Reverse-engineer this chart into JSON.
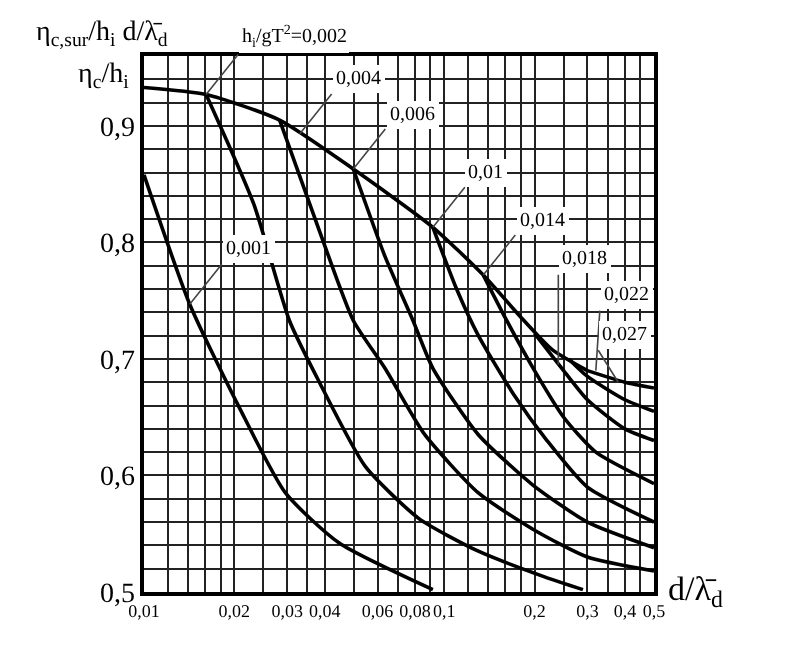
{
  "chart_data": {
    "type": "line",
    "ylabel": "η$_{c,sur}$/h$_{i}$ d/λ̄$_{d}$",
    "xlabel": "d/λ̄$_{d}$",
    "log": "x",
    "grid": true,
    "marker": "none",
    "line_style": "solid",
    "xlim": [
      0.01,
      0.5
    ],
    "ylim": [
      0.5,
      0.96
    ],
    "xticks": [
      {
        "value": 0.01,
        "label": "0,01"
      },
      {
        "value": 0.012,
        "label": null
      },
      {
        "value": 0.014,
        "label": null
      },
      {
        "value": 0.016,
        "label": null
      },
      {
        "value": 0.018,
        "label": null
      },
      {
        "value": 0.02,
        "label": "0,02"
      },
      {
        "value": 0.025,
        "label": null
      },
      {
        "value": 0.03,
        "label": "0,03"
      },
      {
        "value": 0.035,
        "label": null
      },
      {
        "value": 0.04,
        "label": "0,04"
      },
      {
        "value": 0.05,
        "label": null
      },
      {
        "value": 0.06,
        "label": "0,06"
      },
      {
        "value": 0.07,
        "label": null
      },
      {
        "value": 0.08,
        "label": "0,08"
      },
      {
        "value": 0.09,
        "label": null
      },
      {
        "value": 0.1,
        "label": "0,1"
      },
      {
        "value": 0.12,
        "label": null
      },
      {
        "value": 0.14,
        "label": null
      },
      {
        "value": 0.16,
        "label": null
      },
      {
        "value": 0.18,
        "label": null
      },
      {
        "value": 0.2,
        "label": "0,2"
      },
      {
        "value": 0.25,
        "label": null
      },
      {
        "value": 0.3,
        "label": "0,3"
      },
      {
        "value": 0.35,
        "label": null
      },
      {
        "value": 0.4,
        "label": "0,4"
      },
      {
        "value": 0.45,
        "label": null
      },
      {
        "value": 0.5,
        "label": "0,5"
      }
    ],
    "yticks": [
      {
        "value": 0.5,
        "label": "0,5"
      },
      {
        "value": 0.52,
        "label": null
      },
      {
        "value": 0.54,
        "label": null
      },
      {
        "value": 0.56,
        "label": null
      },
      {
        "value": 0.58,
        "label": null
      },
      {
        "value": 0.6,
        "label": "0,6"
      },
      {
        "value": 0.62,
        "label": null
      },
      {
        "value": 0.64,
        "label": null
      },
      {
        "value": 0.66,
        "label": null
      },
      {
        "value": 0.68,
        "label": null
      },
      {
        "value": 0.7,
        "label": "0,7"
      },
      {
        "value": 0.72,
        "label": null
      },
      {
        "value": 0.74,
        "label": null
      },
      {
        "value": 0.76,
        "label": null
      },
      {
        "value": 0.78,
        "label": null
      },
      {
        "value": 0.8,
        "label": "0,8"
      },
      {
        "value": 0.82,
        "label": null
      },
      {
        "value": 0.84,
        "label": null
      },
      {
        "value": 0.86,
        "label": null
      },
      {
        "value": 0.88,
        "label": null
      },
      {
        "value": 0.9,
        "label": "0,9"
      },
      {
        "value": 0.92,
        "label": null
      },
      {
        "value": 0.94,
        "label": null
      }
    ],
    "series": [
      {
        "color": "#000000",
        "x": [
          0.01,
          0.0161,
          0.0283,
          0.0498,
          0.0917,
          0.135,
          0.177,
          0.229,
          0.3
        ],
        "values": [
          0.933,
          0.927,
          0.905,
          0.863,
          0.813,
          0.772,
          0.738,
          0.708,
          0.69
        ]
      },
      {
        "color": "#000000",
        "x": [
          0.01,
          0.0142,
          0.0208,
          0.0296,
          0.0447,
          0.0917
        ],
        "values": [
          0.858,
          0.747,
          0.658,
          0.585,
          0.542,
          0.502
        ]
      },
      {
        "color": "#000000",
        "x": [
          0.0161,
          0.0232,
          0.0305,
          0.0384,
          0.0545,
          0.0824,
          0.13,
          0.216,
          0.29
        ],
        "values": [
          0.927,
          0.833,
          0.733,
          0.68,
          0.608,
          0.563,
          0.535,
          0.513,
          0.502
        ]
      },
      {
        "color": "#000000",
        "x": [
          0.0283,
          0.0384,
          0.0498,
          0.0635,
          0.0862,
          0.13,
          0.2,
          0.3,
          0.5
        ],
        "values": [
          0.905,
          0.81,
          0.733,
          0.692,
          0.635,
          0.585,
          0.553,
          0.53,
          0.518
        ]
      },
      {
        "color": "#000000",
        "x": [
          0.0498,
          0.0635,
          0.0787,
          0.0917,
          0.13,
          0.197,
          0.3,
          0.5
        ],
        "values": [
          0.863,
          0.788,
          0.733,
          0.692,
          0.635,
          0.592,
          0.56,
          0.538
        ]
      },
      {
        "color": "#000000",
        "x": [
          0.0917,
          0.11,
          0.13,
          0.17,
          0.22,
          0.3,
          0.5
        ],
        "values": [
          0.813,
          0.76,
          0.72,
          0.67,
          0.63,
          0.59,
          0.56
        ]
      },
      {
        "color": "#000000",
        "x": [
          0.135,
          0.16,
          0.2,
          0.25,
          0.32,
          0.5
        ],
        "values": [
          0.772,
          0.735,
          0.69,
          0.65,
          0.62,
          0.593
        ]
      },
      {
        "color": "#000000",
        "x": [
          0.2,
          0.25,
          0.3,
          0.4,
          0.5
        ],
        "values": [
          0.722,
          0.69,
          0.665,
          0.64,
          0.63
        ]
      },
      {
        "color": "#000000",
        "x": [
          0.26,
          0.3,
          0.4,
          0.5
        ],
        "values": [
          0.7,
          0.685,
          0.665,
          0.655
        ]
      },
      {
        "color": "#000000",
        "x": [
          0.3,
          0.4,
          0.5
        ],
        "values": [
          0.69,
          0.68,
          0.675
        ]
      }
    ],
    "annotations": [
      "η$_{c}$/h$_{i}$",
      {
        "text": "h$_{i}$/gT$^{2}$=0,002",
        "x": 0.0161,
        "y": 0.927
      },
      {
        "text": "0,001",
        "x": 0.0142,
        "y": 0.747
      },
      {
        "text": "0,004",
        "x": 0.033,
        "y": 0.893
      },
      {
        "text": "0,006",
        "x": 0.0498,
        "y": 0.863
      },
      {
        "text": "0,01",
        "x": 0.0917,
        "y": 0.813
      },
      {
        "text": "0,014",
        "x": 0.135,
        "y": 0.772
      },
      {
        "text": "0,018",
        "x": 0.24,
        "y": 0.695
      },
      {
        "text": "0,022",
        "x": 0.32,
        "y": 0.69
      },
      {
        "text": "0,027",
        "x": 0.38,
        "y": 0.68
      }
    ]
  }
}
